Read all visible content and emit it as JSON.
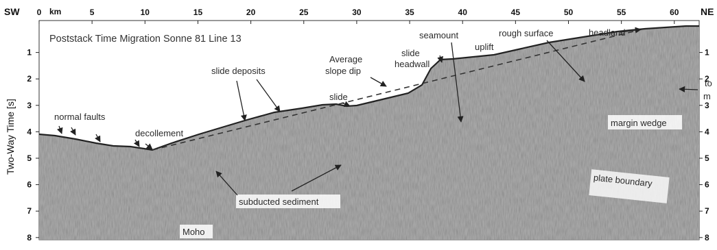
{
  "figure": {
    "title": "Poststack Time Migration Sonne 81 Line 13",
    "corner_left": "SW",
    "corner_right": "NE",
    "x_unit": "km",
    "y_label": "Two-Way Time [s]",
    "x_ticks": [
      "0",
      "5",
      "10",
      "15",
      "20",
      "25",
      "30",
      "35",
      "40",
      "45",
      "50",
      "55",
      "60"
    ],
    "y_ticks_left": [
      "1",
      "2",
      "3",
      "4",
      "5",
      "6",
      "7",
      "8"
    ],
    "y_ticks_right": [
      "1",
      "2",
      "3",
      "4",
      "5",
      "6",
      "7",
      "8"
    ],
    "cut_off_right_text": [
      "to",
      "m"
    ]
  },
  "annotations": {
    "normal_faults": "normal faults",
    "decollement": "decollement",
    "slide_deposits": "slide deposits",
    "slide": "slide",
    "average_slope_dip_1": "Average",
    "average_slope_dip_2": "slope dip",
    "slide_headwall_1": "slide",
    "slide_headwall_2": "headwall",
    "seamount": "seamount",
    "uplift": "uplift",
    "rough_surface": "rough surface",
    "headland": "headland",
    "margin_wedge": "margin wedge",
    "plate_boundary": "plate boundary",
    "subducted_sediment": "subducted sediment",
    "moho": "Moho"
  },
  "colors": {
    "water": "#ffffff",
    "sediment_fill": "#9a9a9a",
    "seafloor_line": "#222222"
  }
}
